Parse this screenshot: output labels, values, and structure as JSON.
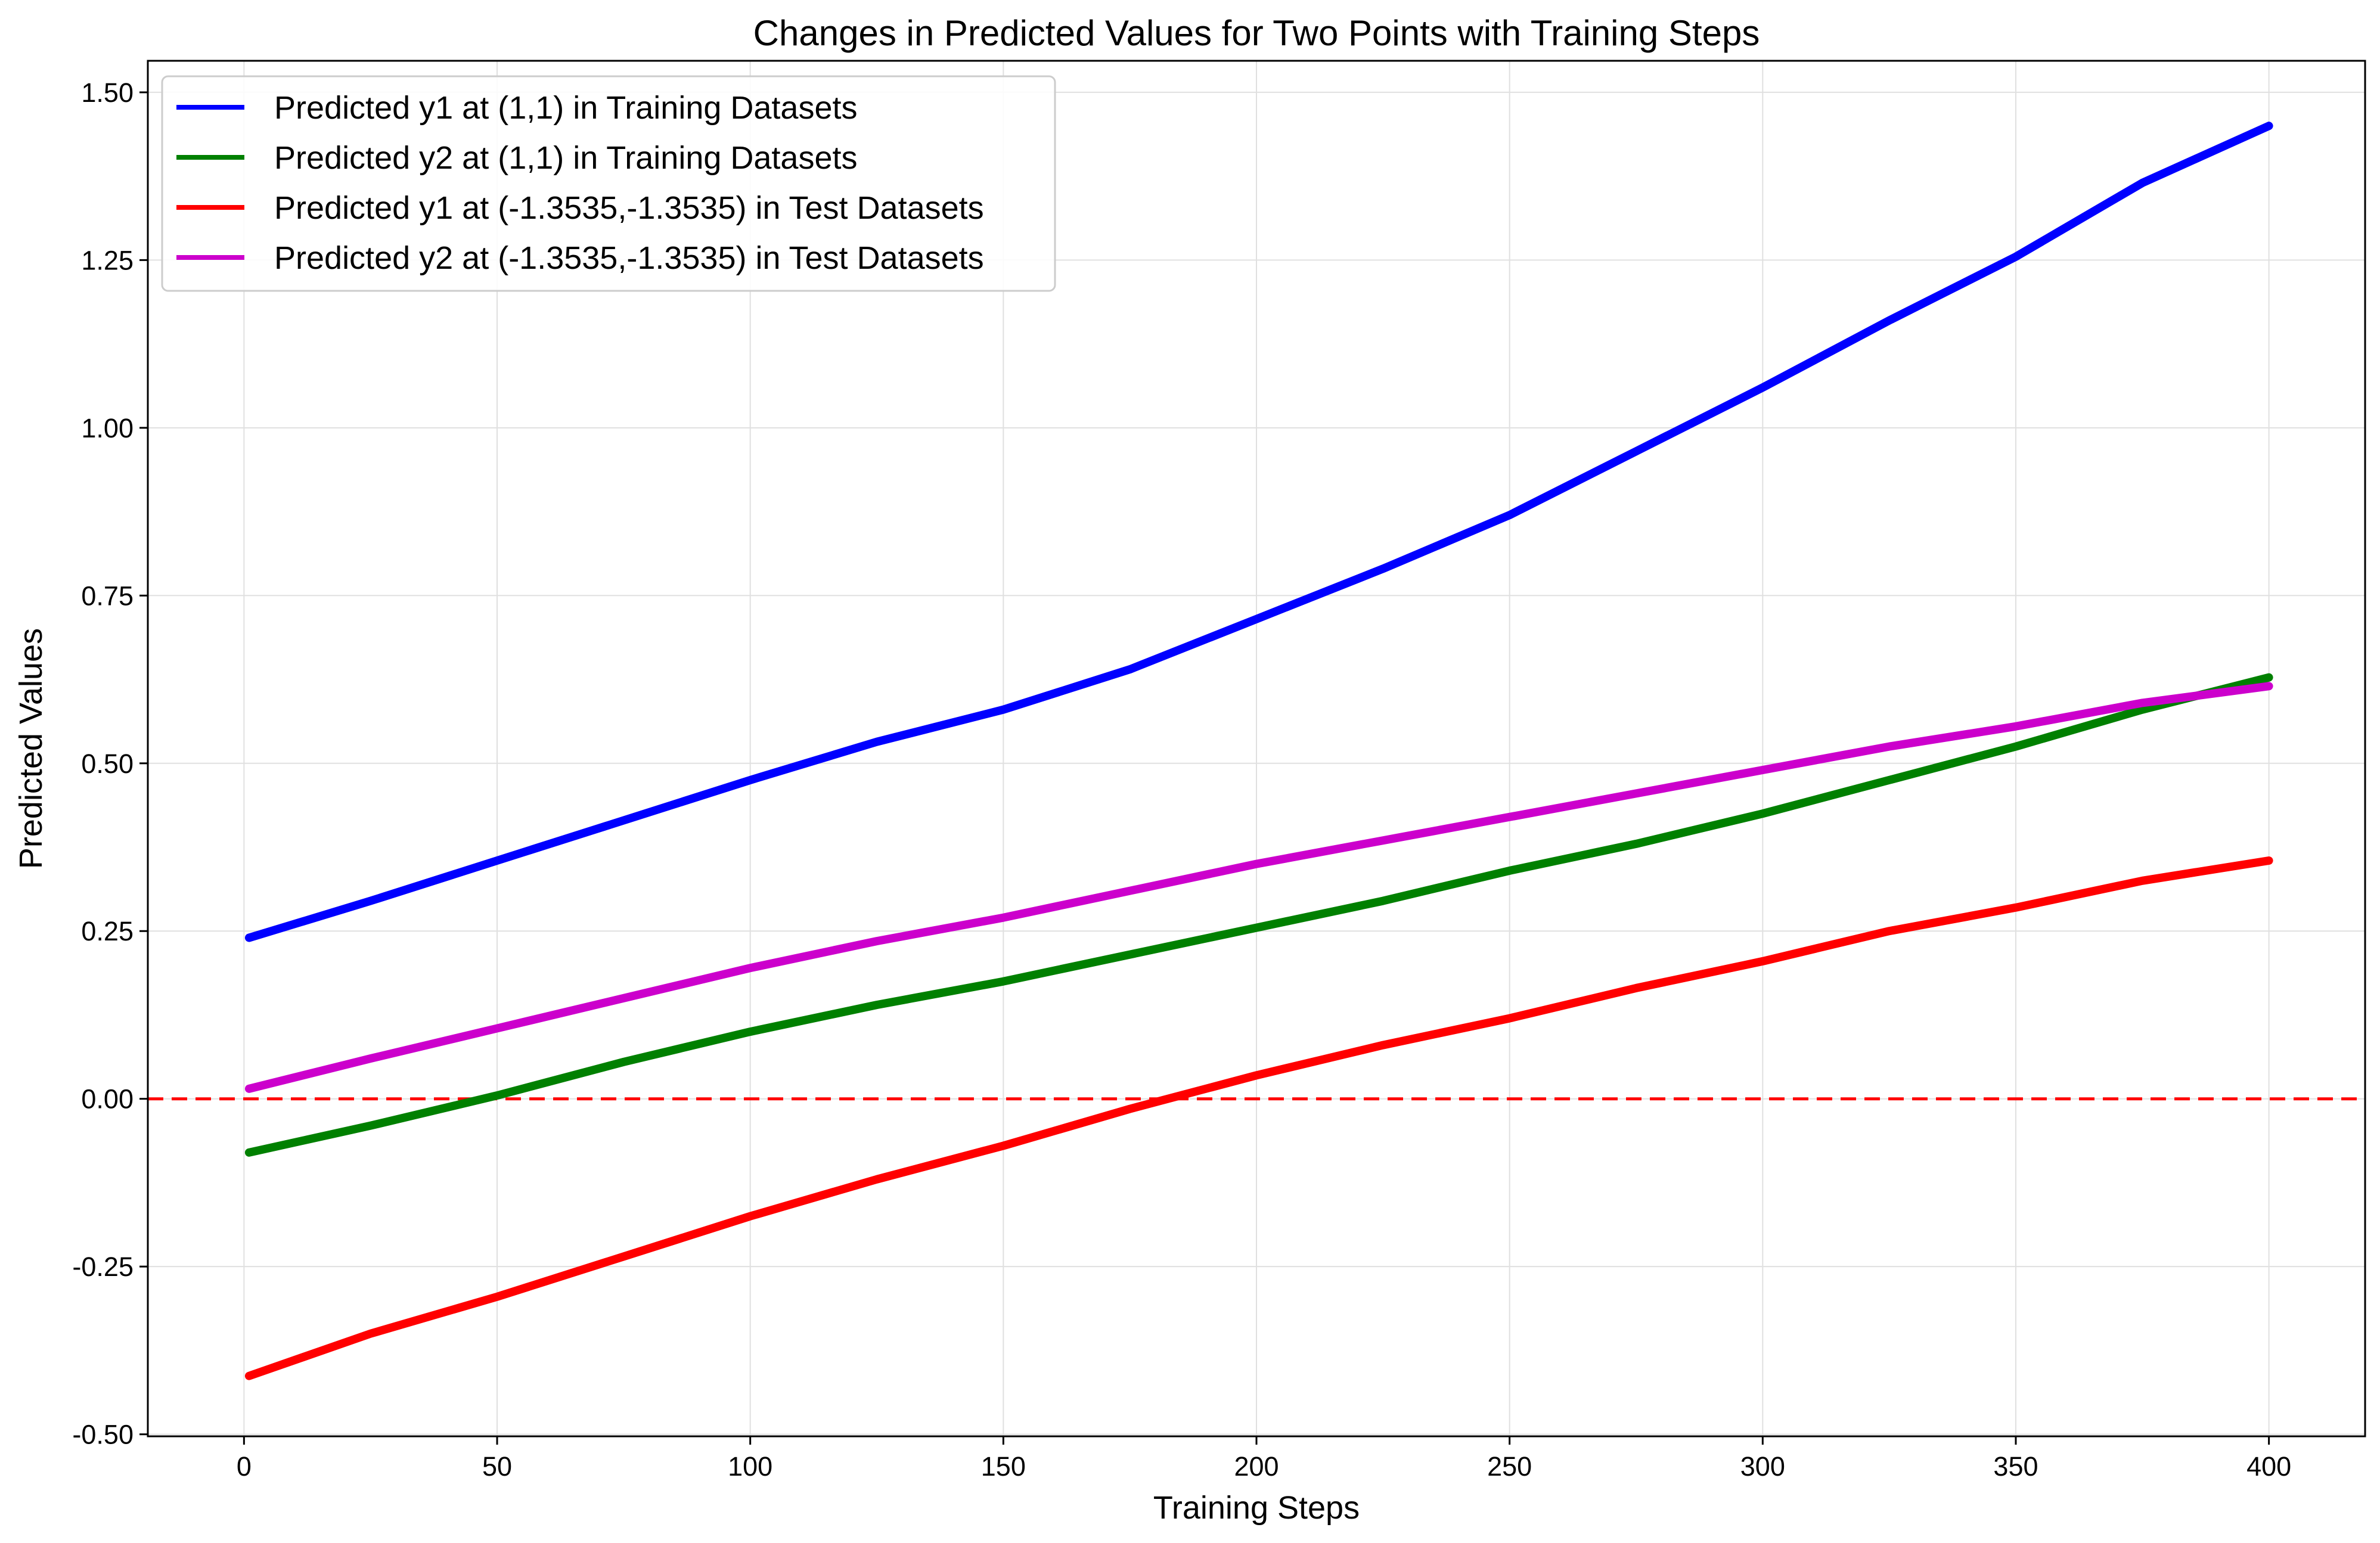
{
  "chart_data": {
    "type": "line",
    "title": "Changes in Predicted Values for Two Points with Training Steps",
    "xlabel": "Training Steps",
    "ylabel": "Predicted Values",
    "xlim": [
      -19,
      419
    ],
    "ylim": [
      -0.503,
      1.547
    ],
    "xticks": [
      0,
      50,
      100,
      150,
      200,
      250,
      300,
      350,
      400
    ],
    "xtick_labels": [
      "0",
      "50",
      "100",
      "150",
      "200",
      "250",
      "300",
      "350",
      "400"
    ],
    "yticks": [
      -0.5,
      -0.25,
      0.0,
      0.25,
      0.5,
      0.75,
      1.0,
      1.25,
      1.5
    ],
    "ytick_labels": [
      "-0.50",
      "-0.25",
      "0.00",
      "0.25",
      "0.50",
      "0.75",
      "1.00",
      "1.25",
      "1.50"
    ],
    "grid": true,
    "legend_position": "upper-left",
    "reference_line": {
      "y": 0.0,
      "style": "dashed",
      "color": "#ff0000"
    },
    "series": [
      {
        "name": "Predicted y1 at (1,1) in Training Datasets",
        "color": "#0000ff",
        "x": [
          1,
          25,
          50,
          75,
          100,
          125,
          150,
          175,
          200,
          225,
          250,
          275,
          300,
          325,
          350,
          375,
          400
        ],
        "y": [
          0.24,
          0.295,
          0.355,
          0.415,
          0.475,
          0.532,
          0.58,
          0.64,
          0.715,
          0.79,
          0.87,
          0.965,
          1.06,
          1.16,
          1.255,
          1.365,
          1.45
        ]
      },
      {
        "name": "Predicted y2 at (1,1) in Training Datasets",
        "color": "#008000",
        "x": [
          1,
          25,
          50,
          75,
          100,
          125,
          150,
          175,
          200,
          225,
          250,
          275,
          300,
          325,
          350,
          375,
          400
        ],
        "y": [
          -0.08,
          -0.04,
          0.005,
          0.055,
          0.1,
          0.14,
          0.175,
          0.215,
          0.255,
          0.295,
          0.34,
          0.38,
          0.425,
          0.475,
          0.525,
          0.58,
          0.628
        ]
      },
      {
        "name": "Predicted y1 at (-1.3535,-1.3535) in Test Datasets",
        "color": "#ff0000",
        "x": [
          1,
          25,
          50,
          75,
          100,
          125,
          150,
          175,
          200,
          225,
          250,
          275,
          300,
          325,
          350,
          375,
          400
        ],
        "y": [
          -0.413,
          -0.35,
          -0.295,
          -0.235,
          -0.175,
          -0.12,
          -0.07,
          -0.015,
          0.035,
          0.08,
          0.12,
          0.165,
          0.205,
          0.25,
          0.285,
          0.325,
          0.355
        ]
      },
      {
        "name": "Predicted y2 at (-1.3535,-1.3535) in Test Datasets",
        "color": "#cc00cc",
        "x": [
          1,
          25,
          50,
          75,
          100,
          125,
          150,
          175,
          200,
          225,
          250,
          275,
          300,
          325,
          350,
          375,
          400
        ],
        "y": [
          0.015,
          0.06,
          0.105,
          0.15,
          0.195,
          0.235,
          0.27,
          0.31,
          0.35,
          0.385,
          0.42,
          0.455,
          0.49,
          0.525,
          0.555,
          0.59,
          0.615
        ]
      }
    ]
  }
}
